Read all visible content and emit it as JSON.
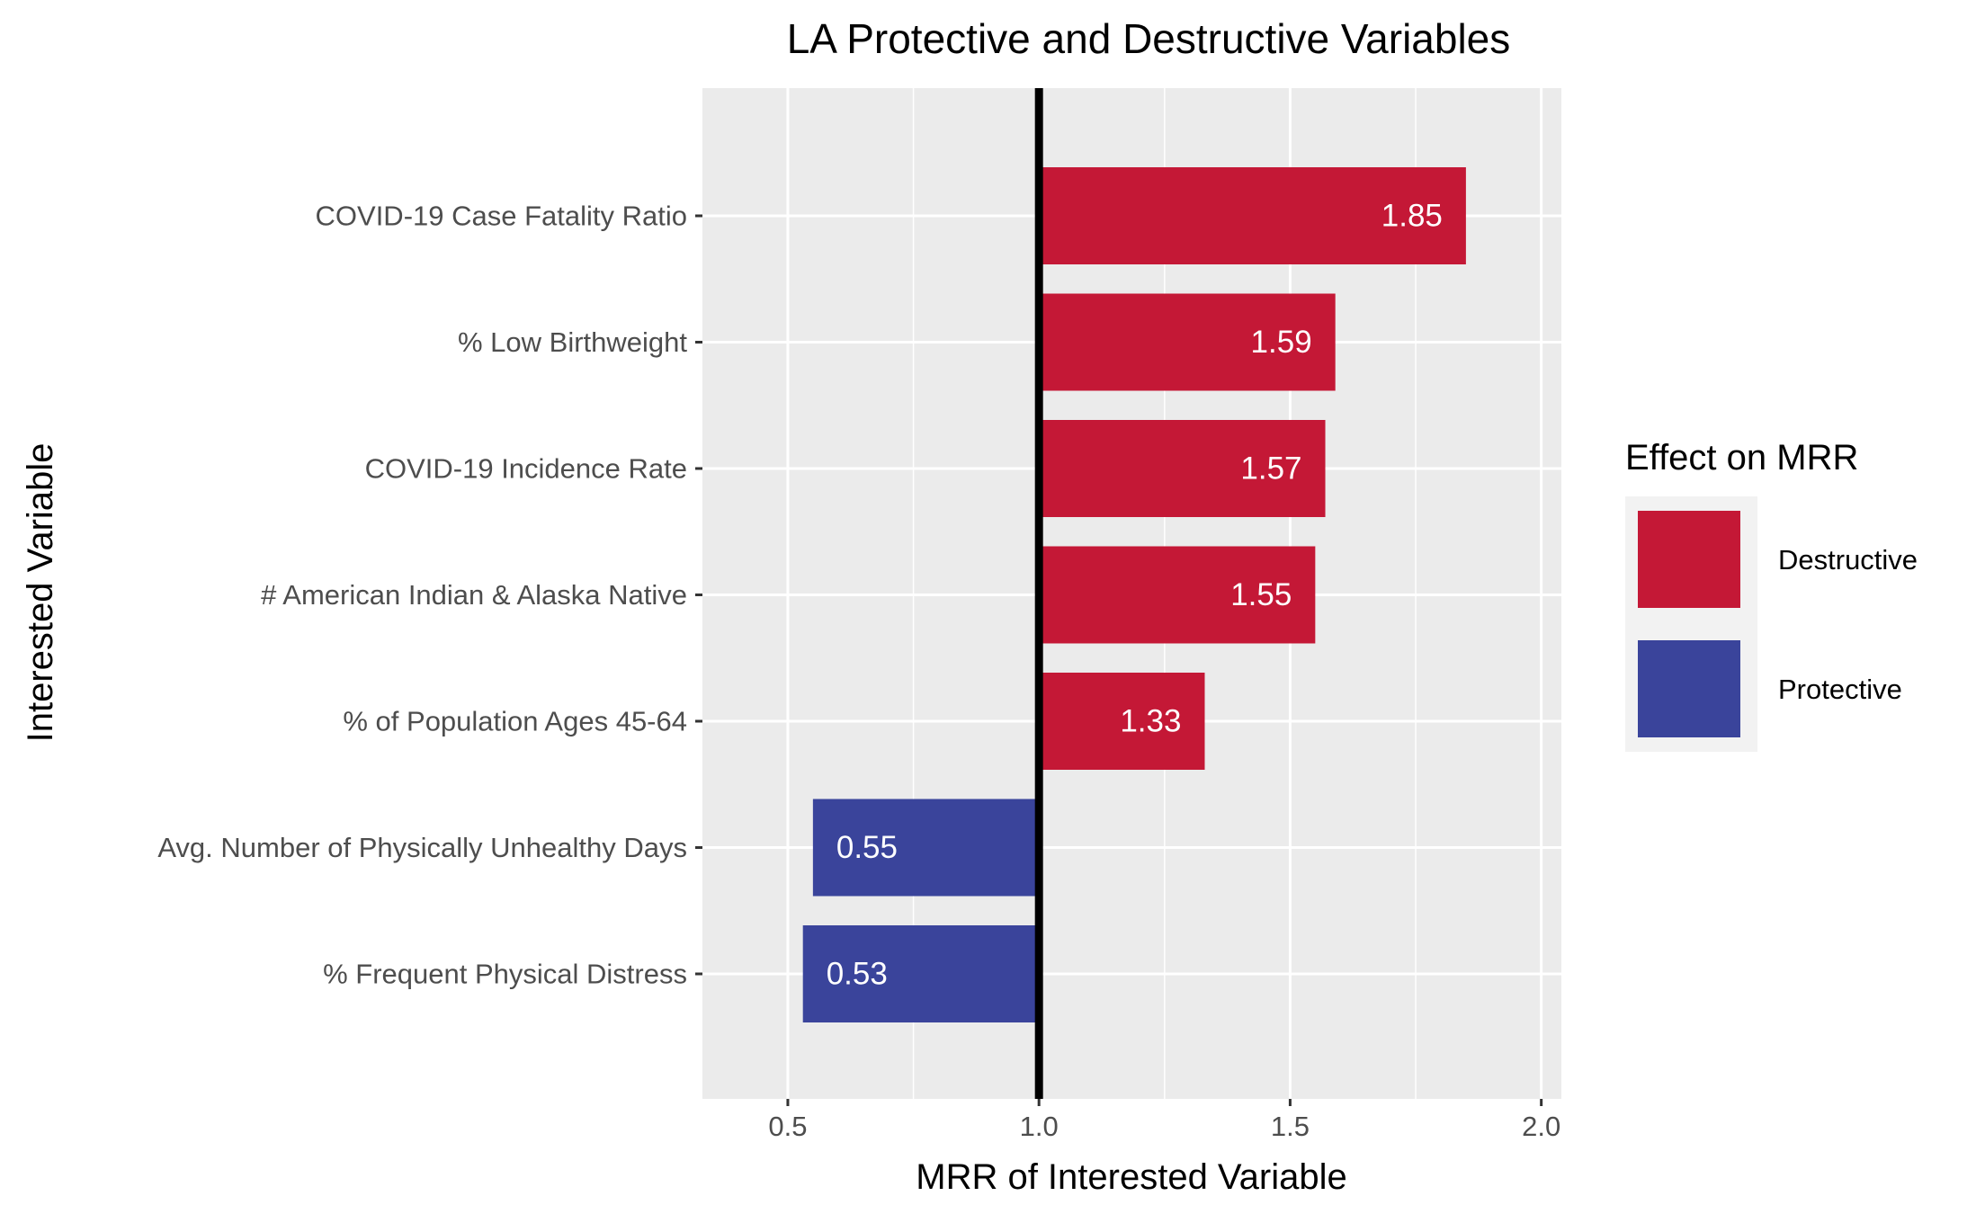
{
  "chart_data": {
    "type": "bar",
    "orientation": "horizontal",
    "title": "LA Protective and Destructive Variables",
    "xlabel": "MRR of Interested Variable",
    "ylabel": "Interested Variable",
    "xlim": [
      0.33,
      2.04
    ],
    "xticks": [
      0.5,
      1.0,
      1.5,
      2.0
    ],
    "xtick_labels": [
      "0.5",
      "1.0",
      "1.5",
      "2.0"
    ],
    "reference_line": 1.0,
    "grid": true,
    "categories": [
      "COVID-19 Case Fatality Ratio",
      "% Low Birthweight",
      "COVID-19 Incidence Rate",
      "# American Indian & Alaska Native",
      "% of Population Ages 45-64",
      "Avg. Number of Physically Unhealthy Days",
      "% Frequent Physical Distress"
    ],
    "values": [
      1.85,
      1.59,
      1.57,
      1.55,
      1.33,
      0.55,
      0.53
    ],
    "value_labels": [
      "1.85",
      "1.59",
      "1.57",
      "1.55",
      "1.33",
      "0.55",
      "0.53"
    ],
    "effects": [
      "Destructive",
      "Destructive",
      "Destructive",
      "Destructive",
      "Destructive",
      "Protective",
      "Protective"
    ],
    "legend": {
      "title": "Effect on MRR",
      "placement": "right",
      "entries": [
        {
          "name": "Destructive",
          "color": "#c41836"
        },
        {
          "name": "Protective",
          "color": "#3a449b"
        }
      ]
    },
    "colors": {
      "Destructive": "#c41836",
      "Protective": "#3a449b",
      "panel": "#ebebeb",
      "grid": "#ffffff",
      "reference_line": "#000000"
    }
  }
}
